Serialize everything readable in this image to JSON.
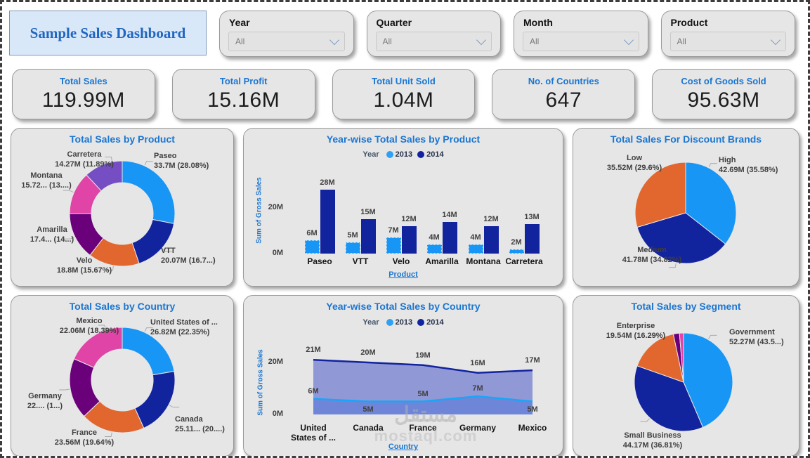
{
  "title": "Sample Sales Dashboard",
  "filters": [
    {
      "label": "Year",
      "value": "All"
    },
    {
      "label": "Quarter",
      "value": "All"
    },
    {
      "label": "Month",
      "value": "All"
    },
    {
      "label": "Product",
      "value": "All"
    }
  ],
  "kpis": [
    {
      "label": "Total Sales",
      "value": "119.99M"
    },
    {
      "label": "Total Profit",
      "value": "15.16M"
    },
    {
      "label": "Total Unit Sold",
      "value": "1.04M"
    },
    {
      "label": "No. of Countries",
      "value": "647"
    },
    {
      "label": "Cost of Goods Sold",
      "value": "95.63M"
    }
  ],
  "colors": {
    "accent_blue": "#1B76D1",
    "light_blue": "#1796F5",
    "dark_blue": "#12239E",
    "orange": "#E2672F",
    "dark_purple": "#6B007B",
    "pink": "#E044A7",
    "medium_purple": "#744EC2",
    "area_2014_fill": "#9099D6",
    "area_2013_fill": "#6F86D8",
    "card_bg": "#E6E6E6",
    "title_box_bg": "#D9E8F8",
    "title_text": "#2166C0"
  },
  "watermark": {
    "line1": "مستقل",
    "line2": "mostaql.com"
  },
  "chart_data": [
    {
      "type": "pie",
      "donut": true,
      "title": "Total Sales by Product",
      "slices": [
        {
          "name": "Paseo",
          "label": "33.7M (28.08%)",
          "value_m": 33.7,
          "pct": 28.08,
          "color": "#1796F5"
        },
        {
          "name": "VTT",
          "label": "20.07M (16.7...)",
          "value_m": 20.07,
          "pct": 16.73,
          "color": "#12239E"
        },
        {
          "name": "Velo",
          "label": "18.8M (15.67%)",
          "value_m": 18.8,
          "pct": 15.67,
          "color": "#E2672F"
        },
        {
          "name": "Amarilla",
          "label": "17.4... (14...)",
          "value_m": 17.4,
          "pct": 14.53,
          "color": "#6B007B"
        },
        {
          "name": "Montana",
          "label": "15.72... (13....)",
          "value_m": 15.72,
          "pct": 13.1,
          "color": "#E044A7"
        },
        {
          "name": "Carretera",
          "label": "14.27M (11.89%)",
          "value_m": 14.27,
          "pct": 11.89,
          "color": "#744EC2"
        }
      ]
    },
    {
      "type": "bar",
      "title": "Year-wise Total Sales by Product",
      "legend_title": "Year",
      "legend_position": "top",
      "categories": [
        "Paseo",
        "VTT",
        "Velo",
        "Amarilla",
        "Montana",
        "Carretera"
      ],
      "series": [
        {
          "name": "2013",
          "color": "#1796F5",
          "values": [
            6,
            5,
            7,
            4,
            4,
            2
          ],
          "labels": [
            "6M",
            "5M",
            "7M",
            "4M",
            "4M",
            "2M"
          ]
        },
        {
          "name": "2014",
          "color": "#12239E",
          "values": [
            28,
            15,
            12,
            14,
            12,
            13
          ],
          "labels": [
            "28M",
            "15M",
            "12M",
            "14M",
            "12M",
            "13M"
          ]
        }
      ],
      "xlabel": "Product",
      "ylabel": "Sum of Gross Sales",
      "yticks": [
        "0M",
        "20M"
      ],
      "ylim": [
        0,
        30
      ],
      "unit": "M"
    },
    {
      "type": "pie",
      "title": "Total Sales For Discount Brands",
      "slices": [
        {
          "name": "High",
          "label": "42.69M (35.58%)",
          "value_m": 42.69,
          "pct": 35.58,
          "color": "#1796F5"
        },
        {
          "name": "Medium",
          "label": "41.78M (34.82%)",
          "value_m": 41.78,
          "pct": 34.82,
          "color": "#12239E"
        },
        {
          "name": "Low",
          "label": "35.52M (29.6%)",
          "value_m": 35.52,
          "pct": 29.6,
          "color": "#E2672F"
        }
      ]
    },
    {
      "type": "pie",
      "donut": true,
      "title": "Total Sales by Country",
      "slices": [
        {
          "name": "United States of ...",
          "label": "26.82M (22.35%)",
          "value_m": 26.82,
          "pct": 22.35,
          "color": "#1796F5"
        },
        {
          "name": "Canada",
          "label": "25.11... (20....)",
          "value_m": 25.11,
          "pct": 20.93,
          "color": "#12239E"
        },
        {
          "name": "France",
          "label": "23.56M (19.64%)",
          "value_m": 23.56,
          "pct": 19.64,
          "color": "#E2672F"
        },
        {
          "name": "Germany",
          "label": "22.... (1...)",
          "value_m": 22.4,
          "pct": 18.69,
          "color": "#6B007B"
        },
        {
          "name": "Mexico",
          "label": "22.06M (18.39%)",
          "value_m": 22.06,
          "pct": 18.39,
          "color": "#E044A7"
        }
      ]
    },
    {
      "type": "area",
      "title": "Year-wise Total Sales by Country",
      "legend_title": "Year",
      "legend_position": "top",
      "categories": [
        "United States of ...",
        "Canada",
        "France",
        "Germany",
        "Mexico"
      ],
      "tick_lines": [
        [
          "United",
          "States of ..."
        ],
        [
          "Canada"
        ],
        [
          "France"
        ],
        [
          "Germany"
        ],
        [
          "Mexico"
        ]
      ],
      "series": [
        {
          "name": "2013",
          "color": "#19A5F8",
          "fill": "#6F86D8",
          "values": [
            6,
            5,
            5,
            7,
            5
          ],
          "labels": [
            "6M",
            "5M",
            "5M",
            "7M",
            "5M"
          ]
        },
        {
          "name": "2014",
          "color": "#12239E",
          "fill": "#9099D6",
          "values": [
            21,
            20,
            19,
            16,
            17
          ],
          "labels": [
            "21M",
            "20M",
            "19M",
            "16M",
            "17M"
          ]
        }
      ],
      "xlabel": "Country",
      "ylabel": "Sum of Gross Sales",
      "yticks": [
        "0M",
        "20M"
      ],
      "ylim": [
        0,
        25
      ],
      "unit": "M"
    },
    {
      "type": "pie",
      "title": "Total Sales by Segment",
      "slices": [
        {
          "name": "Government",
          "label": "52.27M (43.5...)",
          "value_m": 52.27,
          "pct": 43.56,
          "color": "#1796F5"
        },
        {
          "name": "Small Business",
          "label": "44.17M (36.81%)",
          "value_m": 44.17,
          "pct": 36.81,
          "color": "#12239E"
        },
        {
          "name": "Enterprise",
          "label": "19.54M (16.29%)",
          "value_m": 19.54,
          "pct": 16.29,
          "color": "#E2672F"
        },
        {
          "name": "",
          "label": "",
          "pct": 2.0,
          "color": "#6B007B"
        },
        {
          "name": "",
          "label": "",
          "pct": 1.34,
          "color": "#E044A7"
        }
      ]
    }
  ]
}
